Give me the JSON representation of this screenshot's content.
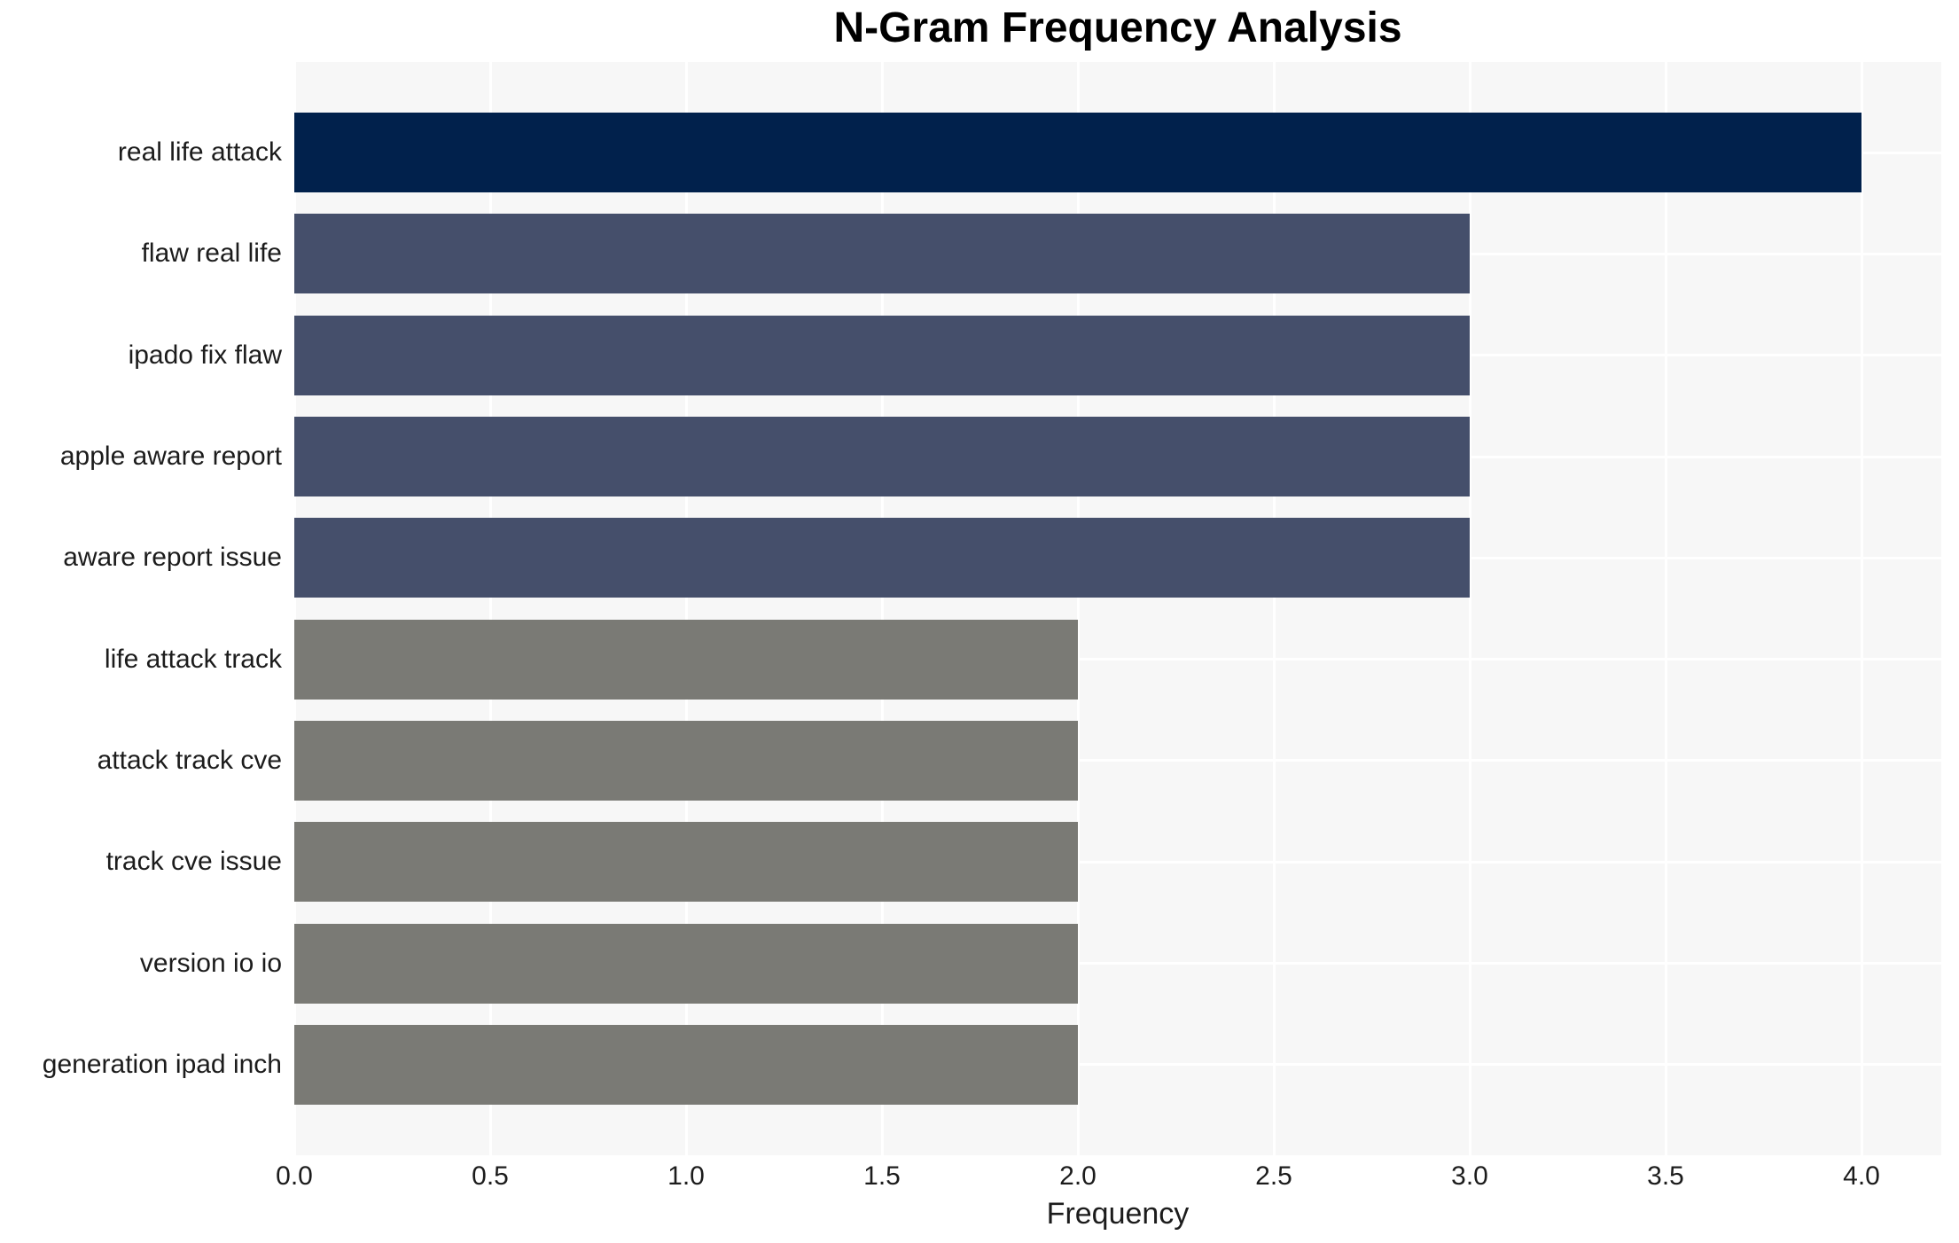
{
  "title": "N-Gram Frequency Analysis",
  "chart_data": {
    "type": "bar",
    "orientation": "horizontal",
    "title": "N-Gram Frequency Analysis",
    "xlabel": "Frequency",
    "ylabel": "",
    "categories": [
      "real life attack",
      "flaw real life",
      "ipado fix flaw",
      "apple aware report",
      "aware report issue",
      "life attack track",
      "attack track cve",
      "track cve issue",
      "version io io",
      "generation ipad inch"
    ],
    "values": [
      4,
      3,
      3,
      3,
      3,
      2,
      2,
      2,
      2,
      2
    ],
    "bar_colors": [
      "#01214C",
      "#454F6B",
      "#454F6B",
      "#454F6B",
      "#454F6B",
      "#7A7A75",
      "#7A7A75",
      "#7A7A75",
      "#7A7A75",
      "#7A7A75"
    ],
    "xtick_labels": [
      "0.0",
      "0.5",
      "1.0",
      "1.5",
      "2.0",
      "2.5",
      "3.0",
      "3.5",
      "4.0"
    ],
    "xtick_values": [
      0,
      0.5,
      1,
      1.5,
      2,
      2.5,
      3,
      3.5,
      4
    ],
    "xlim": [
      0,
      4.2
    ],
    "grid": true,
    "legend": false,
    "plot_bg_color": "#F7F7F7",
    "grid_color": "#FFFFFF",
    "text_color": "#1C1C1C"
  }
}
